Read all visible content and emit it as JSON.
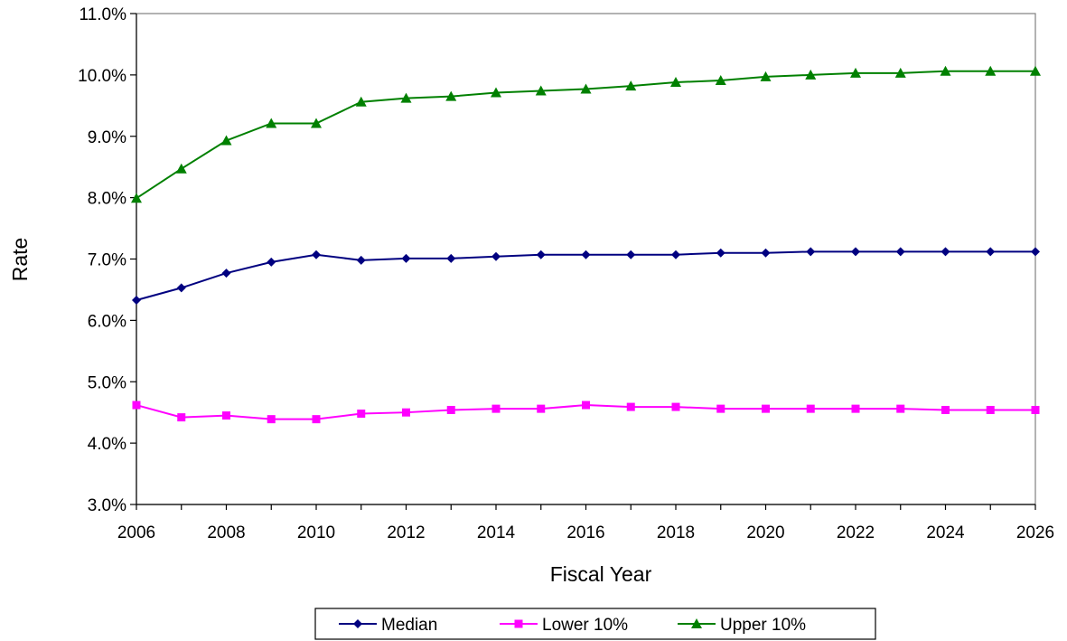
{
  "chart_data": {
    "type": "line",
    "title": "",
    "xlabel": "Fiscal Year",
    "ylabel": "Rate",
    "x": [
      2006,
      2007,
      2008,
      2009,
      2010,
      2011,
      2012,
      2013,
      2014,
      2015,
      2016,
      2017,
      2018,
      2019,
      2020,
      2021,
      2022,
      2023,
      2024,
      2025,
      2026
    ],
    "xlim": [
      2006,
      2026
    ],
    "x_ticks": [
      "2006",
      "2008",
      "2010",
      "2012",
      "2014",
      "2016",
      "2018",
      "2020",
      "2022",
      "2024",
      "2026"
    ],
    "ylim": [
      3.0,
      11.0
    ],
    "y_ticks": [
      "3.0%",
      "4.0%",
      "5.0%",
      "6.0%",
      "7.0%",
      "8.0%",
      "9.0%",
      "10.0%",
      "11.0%"
    ],
    "y_unit": "%",
    "grid": false,
    "legend_position": "bottom",
    "series": [
      {
        "name": "Median",
        "color": "#000080",
        "marker": "diamond",
        "values": [
          6.33,
          6.53,
          6.77,
          6.95,
          7.07,
          6.98,
          7.01,
          7.01,
          7.04,
          7.07,
          7.07,
          7.07,
          7.07,
          7.1,
          7.1,
          7.12,
          7.12,
          7.12,
          7.12,
          7.12,
          7.12
        ]
      },
      {
        "name": "Lower 10%",
        "color": "#ff00ff",
        "marker": "square",
        "values": [
          4.62,
          4.42,
          4.45,
          4.39,
          4.39,
          4.48,
          4.5,
          4.54,
          4.56,
          4.56,
          4.62,
          4.59,
          4.59,
          4.56,
          4.56,
          4.56,
          4.56,
          4.56,
          4.54,
          4.54,
          4.54
        ]
      },
      {
        "name": "Upper 10%",
        "color": "#008000",
        "marker": "triangle",
        "values": [
          7.99,
          8.47,
          8.93,
          9.21,
          9.21,
          9.56,
          9.62,
          9.65,
          9.71,
          9.74,
          9.77,
          9.82,
          9.88,
          9.91,
          9.97,
          10.0,
          10.03,
          10.03,
          10.06,
          10.06,
          10.06
        ]
      }
    ]
  }
}
